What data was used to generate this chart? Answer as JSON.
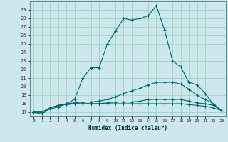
{
  "xlabel": "Humidex (Indice chaleur)",
  "bg_color": "#cce8ee",
  "grid_color": "#99ccbb",
  "line_color": "#006666",
  "xlim": [
    -0.5,
    23.5
  ],
  "ylim": [
    16.5,
    30.0
  ],
  "yticks": [
    17,
    18,
    19,
    20,
    21,
    22,
    23,
    24,
    25,
    26,
    27,
    28,
    29
  ],
  "xticks": [
    0,
    1,
    2,
    3,
    4,
    5,
    6,
    7,
    8,
    9,
    10,
    11,
    12,
    13,
    14,
    15,
    16,
    17,
    18,
    19,
    20,
    21,
    22,
    23
  ],
  "series": [
    [
      17.0,
      16.8,
      17.4,
      17.6,
      18.0,
      18.5,
      21.0,
      22.2,
      22.2,
      25.0,
      26.5,
      28.0,
      27.8,
      28.0,
      28.3,
      29.5,
      26.7,
      23.0,
      22.3,
      20.5,
      20.2,
      19.2,
      17.9,
      17.2
    ],
    [
      17.0,
      17.0,
      17.5,
      17.8,
      18.0,
      18.1,
      18.2,
      18.2,
      18.3,
      18.5,
      18.8,
      19.2,
      19.5,
      19.8,
      20.2,
      20.5,
      20.5,
      20.5,
      20.3,
      19.7,
      19.0,
      18.5,
      18.0,
      17.2
    ],
    [
      17.0,
      17.0,
      17.5,
      17.8,
      17.9,
      18.0,
      18.0,
      18.0,
      18.0,
      18.1,
      18.2,
      18.2,
      18.2,
      18.3,
      18.5,
      18.5,
      18.5,
      18.5,
      18.5,
      18.3,
      18.1,
      18.0,
      17.8,
      17.2
    ],
    [
      17.0,
      17.0,
      17.5,
      17.8,
      17.9,
      18.0,
      18.0,
      18.0,
      18.0,
      18.0,
      18.0,
      18.0,
      18.0,
      18.0,
      18.0,
      18.0,
      18.0,
      18.0,
      18.0,
      17.9,
      17.8,
      17.7,
      17.5,
      17.2
    ]
  ]
}
